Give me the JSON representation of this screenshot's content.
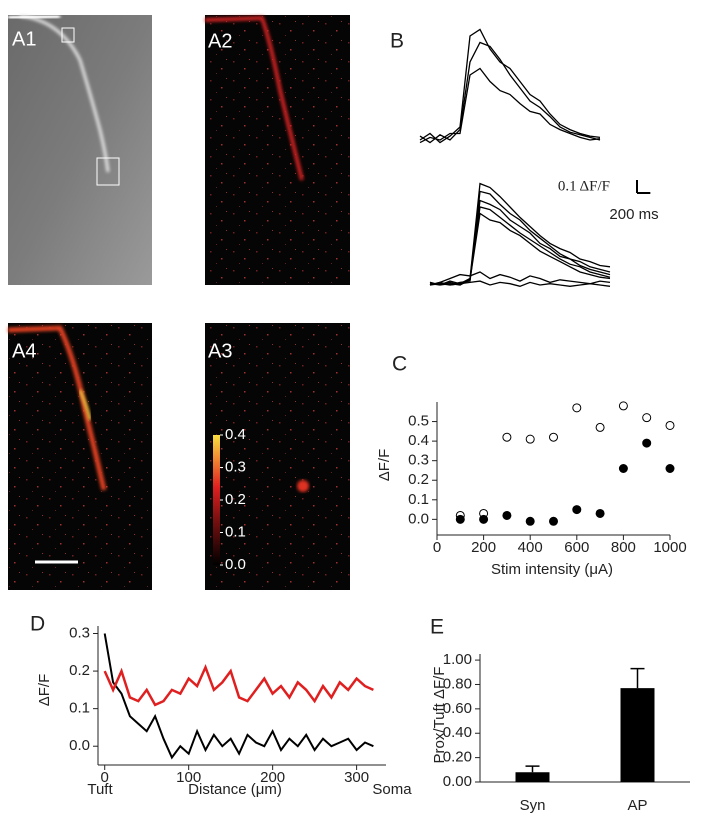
{
  "chart_data": [
    {
      "type": "traces",
      "label": "B",
      "color": "#000000",
      "x": [
        0,
        150,
        300,
        450,
        600,
        750,
        900,
        1050,
        1200,
        1350,
        1500,
        1650,
        1800,
        1950,
        2100,
        2250,
        2400,
        2550,
        2700
      ],
      "groups": [
        {
          "series": [
            {
              "values": [
                0,
                0.05,
                -0.02,
                0.03,
                0.1,
                0.8,
                0.85,
                0.7,
                0.6,
                0.55,
                0.45,
                0.35,
                0.3,
                0.2,
                0.12,
                0.08,
                0.05,
                0.03,
                0.02
              ]
            },
            {
              "values": [
                0.03,
                -0.02,
                0.04,
                0,
                0.08,
                0.6,
                0.75,
                0.72,
                0.62,
                0.5,
                0.4,
                0.3,
                0.25,
                0.18,
                0.1,
                0.06,
                0.04,
                0.02,
                0
              ]
            },
            {
              "values": [
                -0.02,
                0.02,
                0,
                0.05,
                0.05,
                0.5,
                0.55,
                0.45,
                0.38,
                0.35,
                0.28,
                0.22,
                0.2,
                0.12,
                0.08,
                0.05,
                0.02,
                0,
                0.01
              ]
            }
          ]
        },
        {
          "series": [
            {
              "values": [
                0,
                0.02,
                0,
                0.01,
                0.05,
                0.78,
                0.75,
                0.68,
                0.6,
                0.52,
                0.45,
                0.38,
                0.32,
                0.28,
                0.25,
                0.2,
                0.18,
                0.15,
                0.14
              ]
            },
            {
              "values": [
                0.01,
                0,
                0.02,
                0,
                0.04,
                0.72,
                0.7,
                0.62,
                0.55,
                0.5,
                0.42,
                0.36,
                0.3,
                0.24,
                0.2,
                0.18,
                0.14,
                0.12,
                0.1
              ]
            },
            {
              "values": [
                0,
                0.01,
                0,
                0.02,
                0.03,
                0.65,
                0.62,
                0.58,
                0.5,
                0.45,
                0.4,
                0.32,
                0.28,
                0.22,
                0.2,
                0.15,
                0.12,
                0.1,
                0.08
              ]
            },
            {
              "values": [
                0.02,
                0,
                0.01,
                0,
                0.05,
                0.6,
                0.58,
                0.52,
                0.46,
                0.4,
                0.35,
                0.3,
                0.25,
                0.2,
                0.16,
                0.14,
                0.1,
                0.08,
                0.06
              ]
            },
            {
              "values": [
                0,
                0.02,
                0,
                0.01,
                0.04,
                0.55,
                0.5,
                0.48,
                0.42,
                0.38,
                0.32,
                0.26,
                0.22,
                0.18,
                0.14,
                0.1,
                0.08,
                0.06,
                0.05
              ]
            },
            {
              "values": [
                0,
                0.02,
                0.05,
                0.08,
                0.07,
                0.1,
                0.05,
                0.08,
                0.06,
                0.03,
                0.07,
                0.05,
                0.02,
                0.04,
                0.03,
                0.02,
                0.01,
                0.03,
                0.02
              ]
            },
            {
              "values": [
                0.02,
                0,
                0.03,
                0.01,
                0.02,
                0.03,
                0,
                0.02,
                0.01,
                -0.01,
                0.02,
                0,
                0.01,
                0,
                -0.01,
                0,
                0.01,
                0,
                -0.01
              ]
            }
          ]
        }
      ],
      "scale_bar": {
        "y": 0.1,
        "y_label": "0.1 ΔF/F",
        "x": 200,
        "x_label": "200 ms"
      }
    },
    {
      "type": "colorbar",
      "ylim": [
        0,
        0.4
      ],
      "yticks": [
        {
          "value": 0,
          "label": "0.0"
        },
        0.1,
        0.2,
        0.3,
        0.4
      ]
    },
    {
      "type": "scatter",
      "label": "C",
      "x_label": "Stim intensity (μA)",
      "y_label": "ΔF/F",
      "x": [
        100,
        200,
        300,
        400,
        500,
        600,
        700,
        800,
        900,
        1000
      ],
      "series": [
        {
          "color": "#000000",
          "filled": false,
          "values": [
            0.02,
            0.03,
            0.42,
            0.41,
            0.42,
            0.57,
            0.47,
            0.58,
            0.52,
            0.48
          ]
        },
        {
          "color": "#000000",
          "filled": true,
          "values": [
            0.0,
            0.0,
            0.02,
            -0.01,
            -0.01,
            0.05,
            0.03,
            0.26,
            0.39,
            0.26
          ]
        }
      ],
      "xlim": [
        0,
        1000
      ],
      "xticks": [
        0,
        200,
        400,
        600,
        800,
        1000
      ],
      "ylim": [
        -0.08,
        0.6
      ],
      "yticks": [
        {
          "value": 0,
          "label": "0.0"
        },
        0.1,
        0.2,
        0.3,
        0.4,
        0.5
      ]
    },
    {
      "type": "line",
      "label": "D",
      "x_label": "Distance (μm)",
      "x_start_label": "Tuft",
      "x_end_label": "Soma",
      "y_label": "ΔF/F",
      "x": [
        0,
        10,
        20,
        30,
        40,
        50,
        60,
        70,
        80,
        90,
        100,
        110,
        120,
        130,
        140,
        150,
        160,
        170,
        180,
        190,
        200,
        210,
        220,
        230,
        240,
        250,
        260,
        270,
        280,
        290,
        300,
        310,
        320
      ],
      "series": [
        {
          "color": "#000000",
          "values": [
            0.3,
            0.17,
            0.14,
            0.08,
            0.06,
            0.04,
            0.08,
            0.02,
            -0.03,
            0.0,
            -0.02,
            0.04,
            -0.01,
            0.03,
            0.0,
            0.02,
            -0.02,
            0.03,
            0.01,
            0.0,
            0.04,
            -0.01,
            0.02,
            0.0,
            0.03,
            -0.01,
            0.02,
            0.0,
            0.01,
            0.02,
            -0.01,
            0.01,
            0.0
          ]
        },
        {
          "color": "#e02020",
          "values": [
            0.2,
            0.15,
            0.2,
            0.13,
            0.12,
            0.15,
            0.11,
            0.12,
            0.15,
            0.14,
            0.18,
            0.16,
            0.21,
            0.15,
            0.17,
            0.2,
            0.13,
            0.12,
            0.15,
            0.18,
            0.14,
            0.16,
            0.13,
            0.17,
            0.15,
            0.12,
            0.16,
            0.13,
            0.17,
            0.15,
            0.18,
            0.16,
            0.15
          ]
        }
      ],
      "xlim": [
        -8,
        335
      ],
      "xticks": [
        0,
        100,
        200,
        300
      ],
      "ylim": [
        -0.05,
        0.32
      ],
      "yticks": [
        {
          "value": 0,
          "label": "0.0"
        },
        0.1,
        0.2,
        0.3
      ]
    },
    {
      "type": "bar",
      "label": "E",
      "y_label": "Prox/Tuft ΔF/F",
      "categories": [
        "Syn",
        "AP"
      ],
      "values": [
        0.08,
        0.77
      ],
      "errors": [
        0.05,
        0.16
      ],
      "color": "#000000",
      "ylim": [
        0,
        1.05
      ],
      "yticks": [
        {
          "value": 0,
          "label": "0.00"
        },
        {
          "value": 0.2,
          "label": "0.20"
        },
        {
          "value": 0.4,
          "label": "0.40"
        },
        {
          "value": 0.6,
          "label": "0.60"
        },
        {
          "value": 0.8,
          "label": "0.80"
        },
        {
          "value": 1,
          "label": "1.00"
        }
      ]
    }
  ],
  "images": [
    {
      "label": "A1"
    },
    {
      "label": "A2"
    },
    {
      "label": "A4"
    },
    {
      "label": "A3"
    }
  ]
}
